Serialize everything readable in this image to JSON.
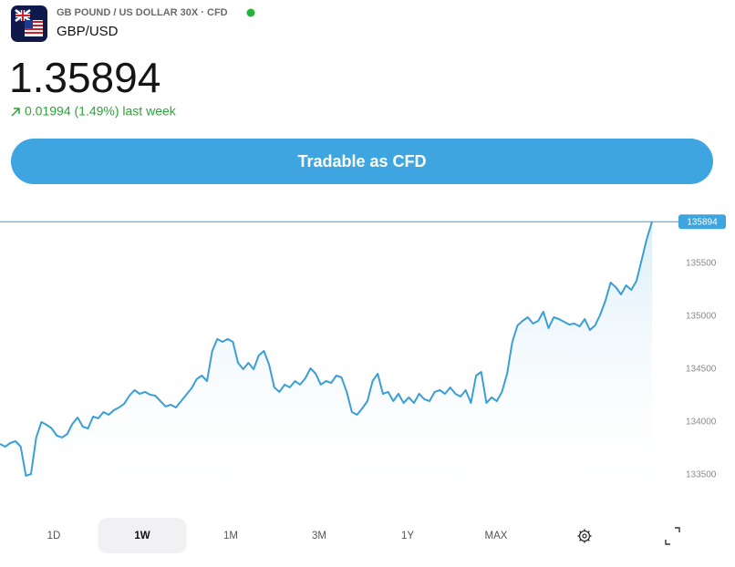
{
  "header": {
    "title": "GB POUND / US DOLLAR 30X · CFD",
    "symbol": "GBP/USD"
  },
  "price": "1.35894",
  "change": "0.01994 (1.49%) last week",
  "button": "Tradable as CFD",
  "chart_data": {
    "type": "line",
    "color": "#3a9fd6",
    "values": [
      133793,
      133767,
      133802,
      133819,
      133767,
      133492,
      133509,
      133854,
      134000,
      133974,
      133940,
      133871,
      133854,
      133888,
      133983,
      134043,
      133957,
      133940,
      134052,
      134035,
      134095,
      134069,
      134112,
      134138,
      134173,
      134250,
      134302,
      134267,
      134285,
      134259,
      134250,
      134198,
      134147,
      134164,
      134138,
      134198,
      134259,
      134319,
      134405,
      134440,
      134388,
      134672,
      134785,
      134759,
      134785,
      134759,
      134560,
      134500,
      134560,
      134500,
      134629,
      134672,
      134543,
      134328,
      134285,
      134354,
      134328,
      134388,
      134354,
      134414,
      134509,
      134457,
      134354,
      134388,
      134371,
      134440,
      134422,
      134285,
      134095,
      134069,
      134129,
      134198,
      134388,
      134457,
      134267,
      134285,
      134198,
      134267,
      134181,
      134233,
      134181,
      134267,
      134216,
      134198,
      134285,
      134302,
      134267,
      134328,
      134267,
      134241,
      134302,
      134181,
      134440,
      134474,
      134181,
      134233,
      134198,
      134285,
      134457,
      134759,
      134914,
      134957,
      134991,
      134931,
      134957,
      135043,
      134888,
      134991,
      134974,
      134948,
      134922,
      134931,
      134905,
      134974,
      134871,
      134914,
      135017,
      135147,
      135319,
      135276,
      135207,
      135293,
      135250,
      135336,
      135535,
      135733,
      135894
    ],
    "ylim": [
      133200,
      136100
    ],
    "yticks": [
      133500,
      134000,
      134500,
      135000,
      135500
    ]
  },
  "tabs": [
    "1D",
    "1W",
    "1M",
    "3M",
    "1Y",
    "MAX"
  ],
  "active_tab": 1
}
